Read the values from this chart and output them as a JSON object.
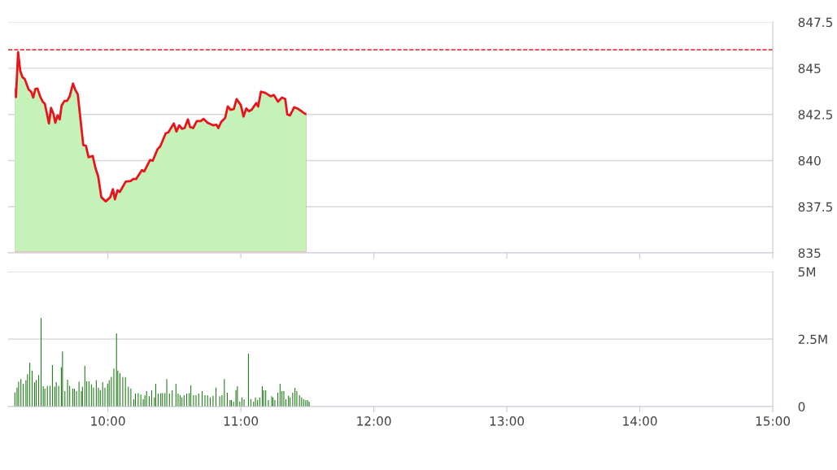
{
  "chart_data": [
    {
      "type": "area",
      "xlim": [
        9.25,
        15
      ],
      "xticks": [
        {
          "value": 10,
          "label": null
        },
        {
          "value": 11,
          "label": null
        },
        {
          "value": 12,
          "label": null
        },
        {
          "value": 13,
          "label": null
        },
        {
          "value": 14,
          "label": null
        },
        {
          "value": 15,
          "label": null
        }
      ],
      "ylim": [
        835,
        847.5
      ],
      "yticks": [
        835,
        837.5,
        840,
        842.5,
        845,
        847.5
      ],
      "grid": "y",
      "tick_labels": "y",
      "ref_lines": [
        {
          "axis": "y",
          "value": 846,
          "color": "#e02020",
          "line_style": "dashed"
        }
      ],
      "series": [
        {
          "color": "#e8141b",
          "x": [
            9.291,
            9.309,
            9.325,
            9.341,
            9.358,
            9.374,
            9.404,
            9.423,
            9.439,
            9.455,
            9.471,
            9.49,
            9.51,
            9.526,
            9.557,
            9.573,
            9.591,
            9.605,
            9.622,
            9.638,
            9.652,
            9.673,
            9.693,
            9.713,
            9.738,
            9.754,
            9.774,
            9.815,
            9.835,
            9.855,
            9.886,
            9.907,
            9.927,
            9.951,
            9.984,
            10.018,
            10.038,
            10.053,
            10.073,
            10.09,
            10.134,
            10.171,
            10.191,
            10.212,
            10.256,
            10.273,
            10.317,
            10.337,
            10.374,
            10.394,
            10.435,
            10.455,
            10.496,
            10.516,
            10.537,
            10.557,
            10.577,
            10.602,
            10.618,
            10.642,
            10.669,
            10.699,
            10.72,
            10.75,
            10.791,
            10.817,
            10.831,
            10.852,
            10.882,
            10.902,
            10.923,
            10.947,
            10.968,
            11.0,
            11.02,
            11.041,
            11.061,
            11.081,
            11.116,
            11.13,
            11.151,
            11.183,
            11.224,
            11.248,
            11.279,
            11.309,
            11.334,
            11.349,
            11.37,
            11.401,
            11.432,
            11.462,
            11.482,
            11.502
          ],
          "values": [
            843.99,
            843.44,
            845.87,
            844.87,
            844.51,
            844.43,
            843.85,
            843.73,
            843.41,
            843.88,
            843.9,
            843.48,
            843.19,
            843.08,
            842.01,
            842.85,
            842.53,
            842.05,
            842.45,
            842.23,
            842.97,
            843.23,
            843.23,
            843.48,
            844.17,
            843.85,
            843.58,
            840.84,
            840.8,
            840.18,
            840.25,
            839.59,
            839.15,
            838.01,
            837.79,
            838.01,
            838.45,
            837.9,
            838.39,
            838.3,
            838.86,
            838.89,
            839.0,
            839.0,
            839.48,
            839.41,
            840.03,
            839.99,
            840.62,
            840.77,
            841.47,
            841.53,
            842.01,
            841.57,
            841.91,
            841.72,
            841.76,
            842.23,
            841.82,
            841.76,
            842.14,
            842.14,
            842.26,
            842.05,
            841.91,
            841.94,
            841.76,
            842.09,
            842.31,
            842.93,
            842.75,
            842.79,
            843.33,
            843.0,
            842.38,
            842.82,
            842.67,
            842.75,
            843.11,
            842.93,
            843.73,
            843.67,
            843.48,
            843.55,
            843.19,
            843.41,
            843.33,
            842.5,
            842.45,
            842.89,
            842.79,
            842.64,
            842.53,
            842.53
          ]
        }
      ]
    },
    {
      "type": "bar",
      "xlim": [
        9.25,
        15
      ],
      "xticks": [
        {
          "value": 10,
          "label": "10:00"
        },
        {
          "value": 11,
          "label": "11:00"
        },
        {
          "value": 12,
          "label": "12:00"
        },
        {
          "value": 13,
          "label": "13:00"
        },
        {
          "value": 14,
          "label": "14:00"
        },
        {
          "value": 15,
          "label": "15:00"
        }
      ],
      "ylim": [
        0,
        5
      ],
      "yticks": [
        {
          "value": 0,
          "label": "0"
        },
        {
          "value": 2.5,
          "label": "2.5M"
        },
        {
          "value": 5,
          "label": "5M"
        }
      ],
      "grid": "y",
      "series": [
        {
          "color": "#1a7a12",
          "x": [
            9.301,
            9.317,
            9.329,
            9.346,
            9.364,
            9.384,
            9.396,
            9.413,
            9.431,
            9.449,
            9.461,
            9.48,
            9.498,
            9.514,
            9.526,
            9.545,
            9.565,
            9.583,
            9.6,
            9.612,
            9.63,
            9.65,
            9.659,
            9.677,
            9.697,
            9.713,
            9.736,
            9.748,
            9.764,
            9.783,
            9.801,
            9.809,
            9.827,
            9.841,
            9.858,
            9.876,
            9.892,
            9.913,
            9.929,
            9.943,
            9.961,
            9.978,
            9.998,
            10.01,
            10.026,
            10.045,
            10.065,
            10.075,
            10.091,
            10.112,
            10.132,
            10.154,
            10.173,
            10.195,
            10.207,
            10.228,
            10.248,
            10.266,
            10.278,
            10.291,
            10.311,
            10.329,
            10.35,
            10.36,
            10.378,
            10.398,
            10.411,
            10.429,
            10.443,
            10.463,
            10.484,
            10.512,
            10.528,
            10.543,
            10.557,
            10.573,
            10.593,
            10.612,
            10.624,
            10.644,
            10.663,
            10.683,
            10.709,
            10.73,
            10.75,
            10.77,
            10.791,
            10.813,
            10.841,
            10.858,
            10.876,
            10.898,
            10.919,
            10.929,
            10.945,
            10.963,
            10.974,
            10.992,
            11.008,
            11.024,
            11.057,
            11.075,
            11.096,
            11.11,
            11.126,
            11.142,
            11.161,
            11.171,
            11.187,
            11.207,
            11.232,
            11.242,
            11.256,
            11.278,
            11.295,
            11.309,
            11.323,
            11.339,
            11.358,
            11.37,
            11.39,
            11.407,
            11.421,
            11.441,
            11.457,
            11.472,
            11.488,
            11.502,
            11.514
          ],
          "values": [
            0.52,
            0.7,
            0.92,
            1.02,
            0.84,
            0.98,
            1.2,
            1.63,
            1.33,
            0.9,
            0.98,
            1.17,
            3.28,
            0.75,
            0.66,
            0.77,
            0.77,
            1.54,
            0.74,
            0.9,
            0.77,
            1.46,
            2.04,
            0.57,
            0.99,
            0.77,
            0.66,
            0.66,
            0.57,
            0.92,
            0.57,
            0.74,
            1.51,
            0.93,
            0.93,
            0.82,
            0.7,
            0.98,
            0.7,
            0.61,
            0.9,
            0.7,
            0.85,
            0.98,
            1.1,
            1.41,
            2.71,
            1.33,
            1.24,
            1.09,
            1.09,
            0.74,
            0.67,
            0.27,
            0.48,
            0.5,
            0.44,
            0.27,
            0.41,
            0.57,
            0.38,
            0.6,
            0.34,
            0.84,
            0.48,
            0.5,
            0.5,
            0.5,
            1.02,
            0.48,
            0.6,
            0.84,
            0.48,
            0.42,
            0.34,
            0.42,
            0.48,
            0.5,
            0.78,
            0.42,
            0.42,
            0.48,
            0.57,
            0.42,
            0.42,
            0.34,
            0.4,
            0.7,
            0.38,
            0.42,
            1.02,
            0.51,
            0.24,
            0.24,
            0.18,
            0.61,
            0.75,
            0.18,
            0.34,
            0.27,
            1.96,
            0.27,
            0.18,
            0.34,
            0.24,
            0.34,
            0.75,
            0.6,
            0.6,
            0.24,
            0.38,
            0.34,
            0.24,
            0.51,
            0.84,
            0.57,
            0.57,
            0.27,
            0.4,
            0.34,
            0.51,
            0.69,
            0.57,
            0.42,
            0.34,
            0.27,
            0.24,
            0.24,
            0.18
          ]
        }
      ]
    }
  ]
}
